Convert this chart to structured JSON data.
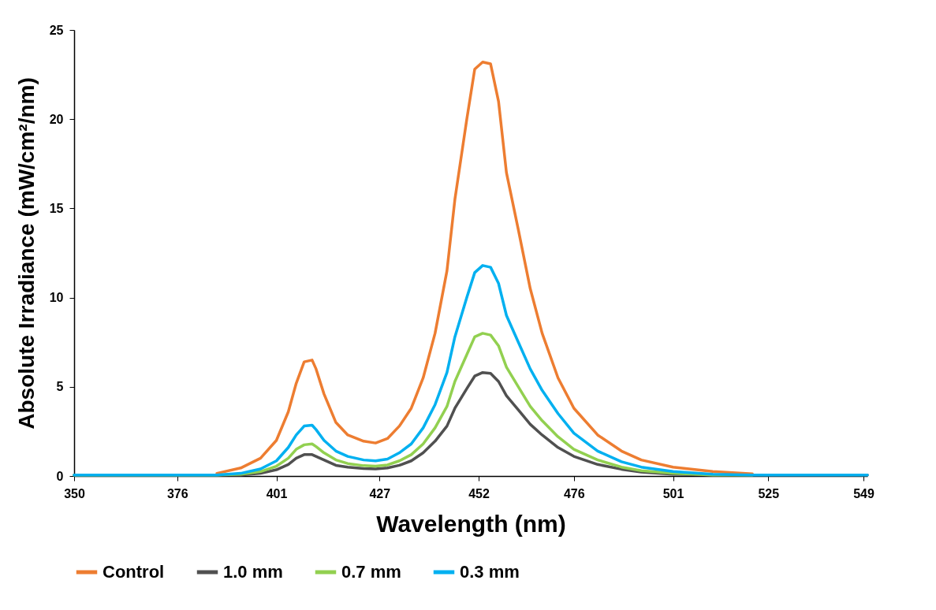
{
  "chart_data": {
    "type": "line",
    "xlabel": "Wavelength (nm)",
    "ylabel": "Absolute Irradiance (mW/cm²/nm)",
    "xlim": [
      350,
      550
    ],
    "xticks": [
      350,
      376,
      401,
      427,
      452,
      476,
      501,
      525,
      549
    ],
    "ylim": [
      0,
      25
    ],
    "yticks": [
      0,
      5,
      10,
      15,
      20,
      25
    ],
    "legend": "bottom",
    "line_style": "solid",
    "x": [
      350,
      380,
      386,
      392,
      397,
      401,
      404,
      406,
      408,
      410,
      411,
      413,
      416,
      419,
      423,
      426,
      429,
      432,
      435,
      438,
      441,
      444,
      446,
      449,
      451,
      453,
      455,
      457,
      459,
      462,
      465,
      468,
      472,
      476,
      482,
      488,
      493,
      501,
      511,
      521,
      535,
      550
    ],
    "series": [
      {
        "name": "Control",
        "color": "#ed7d31",
        "values": [
          null,
          null,
          0.15,
          0.45,
          1.0,
          2.0,
          3.6,
          5.2,
          6.4,
          6.5,
          6.0,
          4.6,
          3.0,
          2.3,
          1.95,
          1.85,
          2.1,
          2.8,
          3.8,
          5.5,
          8.0,
          11.5,
          15.5,
          20.0,
          22.8,
          23.2,
          23.1,
          21.0,
          17.0,
          13.8,
          10.5,
          8.0,
          5.5,
          3.8,
          2.3,
          1.4,
          0.9,
          0.5,
          0.25,
          0.12,
          null,
          null
        ]
      },
      {
        "name": "1.0 mm",
        "color": "#505050",
        "values": [
          0.05,
          0.05,
          0.05,
          0.05,
          0.15,
          0.35,
          0.65,
          1.0,
          1.2,
          1.2,
          1.1,
          0.9,
          0.6,
          0.5,
          0.42,
          0.4,
          0.45,
          0.6,
          0.85,
          1.3,
          1.95,
          2.8,
          3.8,
          4.9,
          5.6,
          5.8,
          5.75,
          5.3,
          4.5,
          3.7,
          2.9,
          2.3,
          1.6,
          1.1,
          0.65,
          0.38,
          0.22,
          0.1,
          0.05,
          0.05,
          0.05,
          0.05
        ]
      },
      {
        "name": "0.7 mm",
        "color": "#92d050",
        "values": [
          0.05,
          0.05,
          0.05,
          0.1,
          0.25,
          0.55,
          1.0,
          1.5,
          1.75,
          1.8,
          1.65,
          1.3,
          0.9,
          0.7,
          0.58,
          0.55,
          0.62,
          0.85,
          1.2,
          1.8,
          2.7,
          3.9,
          5.3,
          6.8,
          7.8,
          8.0,
          7.9,
          7.3,
          6.1,
          5.0,
          3.9,
          3.1,
          2.2,
          1.5,
          0.9,
          0.5,
          0.3,
          0.15,
          0.05,
          0.05,
          null,
          null
        ]
      },
      {
        "name": "0.3 mm",
        "color": "#00b0f0",
        "values": [
          0.05,
          0.05,
          0.05,
          0.15,
          0.4,
          0.85,
          1.6,
          2.3,
          2.8,
          2.85,
          2.6,
          2.0,
          1.4,
          1.1,
          0.9,
          0.85,
          0.95,
          1.3,
          1.8,
          2.7,
          4.0,
          5.8,
          7.8,
          10.0,
          11.4,
          11.8,
          11.7,
          10.8,
          9.0,
          7.5,
          6.0,
          4.8,
          3.5,
          2.4,
          1.4,
          0.8,
          0.5,
          0.25,
          0.1,
          0.05,
          0.05,
          0.05
        ]
      }
    ]
  }
}
